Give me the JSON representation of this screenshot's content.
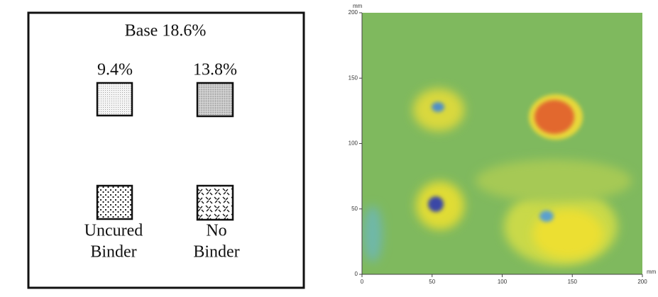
{
  "diagram": {
    "title": "Base 18.6%",
    "samples": [
      {
        "label_lines": [
          "9.4%"
        ]
      },
      {
        "label_lines": [
          "13.8%"
        ]
      },
      {
        "label_lines": [
          "Uncured",
          "Binder"
        ]
      },
      {
        "label_lines": [
          "No",
          "Binder"
        ]
      }
    ]
  },
  "heatmap": {
    "x_unit": "mm",
    "y_unit": "mm",
    "xlim": [
      0,
      200
    ],
    "ylim": [
      0,
      200
    ],
    "xticks": [
      0,
      50,
      100,
      150,
      200
    ],
    "yticks": [
      0,
      50,
      100,
      150,
      200
    ]
  }
}
